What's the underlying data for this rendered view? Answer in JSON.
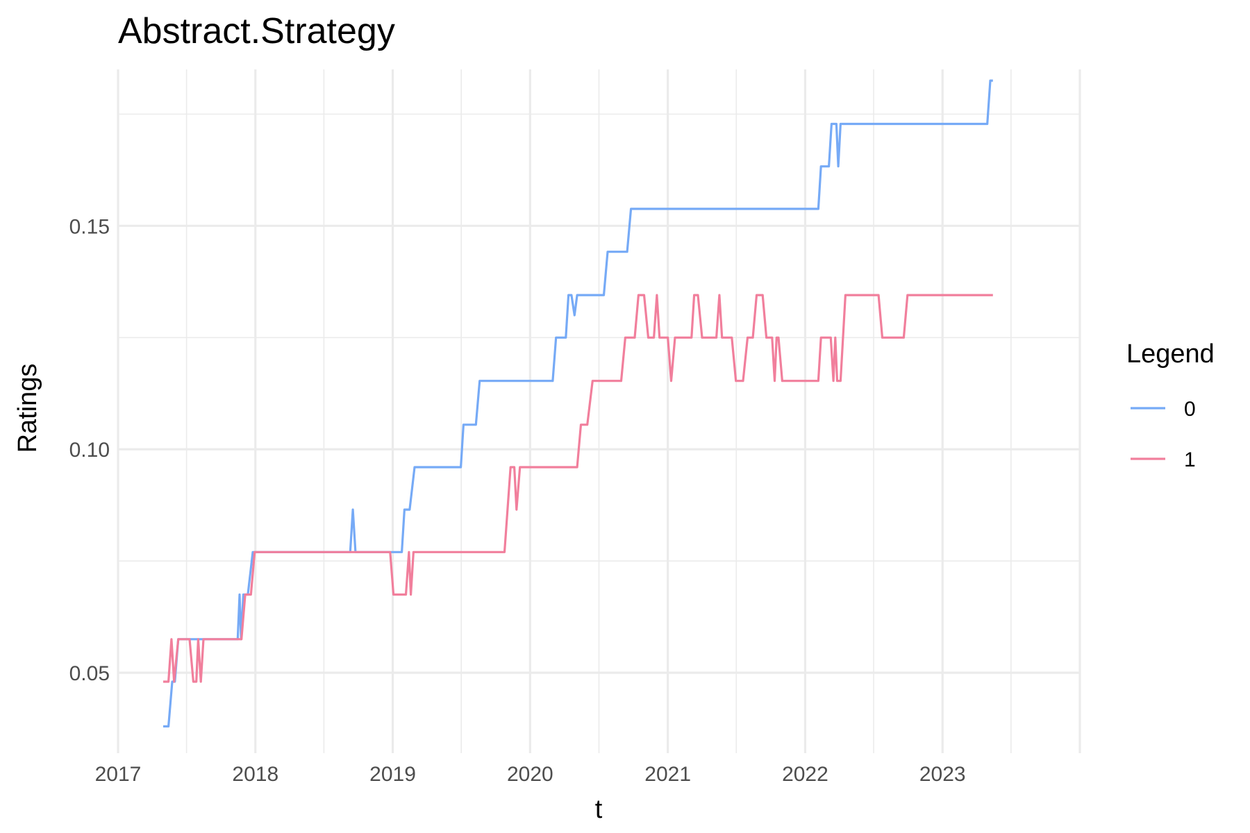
{
  "chart_data": {
    "type": "line",
    "title": "Abstract.Strategy",
    "xlabel": "t",
    "ylabel": "Ratings",
    "xlim": [
      "2017-01-01",
      "2024-01-01"
    ],
    "ylim": [
      0.032,
      0.185
    ],
    "x_ticks": [
      "2017",
      "2018",
      "2019",
      "2020",
      "2021",
      "2022",
      "2023"
    ],
    "y_ticks": [
      "0.05",
      "0.10",
      "0.15"
    ],
    "grid": true,
    "legend": {
      "title": "Legend",
      "placement": "right"
    },
    "series": [
      {
        "name": "0",
        "color": "#76aaf6",
        "points": [
          [
            "2017-05-01",
            0.038
          ],
          [
            "2017-05-15",
            0.038
          ],
          [
            "2017-05-25",
            0.048
          ],
          [
            "2017-06-01",
            0.048
          ],
          [
            "2017-06-10",
            0.0575
          ],
          [
            "2017-11-15",
            0.0575
          ],
          [
            "2017-11-20",
            0.0675
          ],
          [
            "2017-11-24",
            0.0575
          ],
          [
            "2017-11-30",
            0.0675
          ],
          [
            "2017-12-12",
            0.0675
          ],
          [
            "2017-12-25",
            0.077
          ],
          [
            "2018-09-10",
            0.077
          ],
          [
            "2018-09-17",
            0.0865
          ],
          [
            "2018-09-24",
            0.077
          ],
          [
            "2019-01-25",
            0.077
          ],
          [
            "2019-02-01",
            0.0865
          ],
          [
            "2019-02-15",
            0.0865
          ],
          [
            "2019-02-28",
            0.096
          ],
          [
            "2019-07-01",
            0.096
          ],
          [
            "2019-07-08",
            0.1055
          ],
          [
            "2019-08-10",
            0.1055
          ],
          [
            "2019-08-20",
            0.1153
          ],
          [
            "2020-03-01",
            0.1153
          ],
          [
            "2020-03-10",
            0.125
          ],
          [
            "2020-04-05",
            0.125
          ],
          [
            "2020-04-12",
            0.1345
          ],
          [
            "2020-04-20",
            0.1345
          ],
          [
            "2020-04-28",
            0.13
          ],
          [
            "2020-05-05",
            0.1345
          ],
          [
            "2020-07-15",
            0.1345
          ],
          [
            "2020-07-25",
            0.1442
          ],
          [
            "2020-09-15",
            0.1442
          ],
          [
            "2020-09-25",
            0.1538
          ],
          [
            "2022-02-05",
            0.1538
          ],
          [
            "2022-02-12",
            0.1633
          ],
          [
            "2022-03-05",
            0.1633
          ],
          [
            "2022-03-12",
            0.1728
          ],
          [
            "2022-03-25",
            0.1728
          ],
          [
            "2022-03-30",
            0.1633
          ],
          [
            "2022-04-05",
            0.1728
          ],
          [
            "2023-04-30",
            0.1728
          ],
          [
            "2023-05-08",
            0.1825
          ],
          [
            "2023-05-15",
            0.1825
          ]
        ]
      },
      {
        "name": "1",
        "color": "#f17f9c",
        "points": [
          [
            "2017-05-01",
            0.048
          ],
          [
            "2017-05-15",
            0.048
          ],
          [
            "2017-05-23",
            0.0575
          ],
          [
            "2017-05-30",
            0.048
          ],
          [
            "2017-06-10",
            0.0575
          ],
          [
            "2017-07-10",
            0.0575
          ],
          [
            "2017-07-20",
            0.048
          ],
          [
            "2017-07-28",
            0.048
          ],
          [
            "2017-08-02",
            0.0575
          ],
          [
            "2017-08-09",
            0.048
          ],
          [
            "2017-08-16",
            0.0575
          ],
          [
            "2017-11-25",
            0.0575
          ],
          [
            "2017-12-05",
            0.0675
          ],
          [
            "2017-12-20",
            0.0675
          ],
          [
            "2017-12-30",
            0.077
          ],
          [
            "2018-12-25",
            0.077
          ],
          [
            "2019-01-03",
            0.0675
          ],
          [
            "2019-02-05",
            0.0675
          ],
          [
            "2019-02-13",
            0.077
          ],
          [
            "2019-02-18",
            0.0675
          ],
          [
            "2019-02-25",
            0.077
          ],
          [
            "2019-10-25",
            0.077
          ],
          [
            "2019-11-10",
            0.096
          ],
          [
            "2019-11-20",
            0.096
          ],
          [
            "2019-11-26",
            0.0865
          ],
          [
            "2019-12-05",
            0.096
          ],
          [
            "2020-05-05",
            0.096
          ],
          [
            "2020-05-15",
            0.1055
          ],
          [
            "2020-06-01",
            0.1055
          ],
          [
            "2020-06-15",
            0.1153
          ],
          [
            "2020-08-30",
            0.1153
          ],
          [
            "2020-09-10",
            0.125
          ],
          [
            "2020-10-05",
            0.125
          ],
          [
            "2020-10-15",
            0.1345
          ],
          [
            "2020-10-30",
            0.1345
          ],
          [
            "2020-11-10",
            0.125
          ],
          [
            "2020-11-25",
            0.125
          ],
          [
            "2020-12-03",
            0.1345
          ],
          [
            "2020-12-10",
            0.125
          ],
          [
            "2021-01-01",
            0.125
          ],
          [
            "2021-01-10",
            0.1153
          ],
          [
            "2021-01-20",
            0.125
          ],
          [
            "2021-03-05",
            0.125
          ],
          [
            "2021-03-12",
            0.1345
          ],
          [
            "2021-03-22",
            0.1345
          ],
          [
            "2021-04-02",
            0.125
          ],
          [
            "2021-05-10",
            0.125
          ],
          [
            "2021-05-18",
            0.1345
          ],
          [
            "2021-05-25",
            0.125
          ],
          [
            "2021-06-20",
            0.125
          ],
          [
            "2021-07-01",
            0.1153
          ],
          [
            "2021-07-20",
            0.1153
          ],
          [
            "2021-08-01",
            0.125
          ],
          [
            "2021-08-15",
            0.125
          ],
          [
            "2021-08-25",
            0.1345
          ],
          [
            "2021-09-10",
            0.1345
          ],
          [
            "2021-09-20",
            0.125
          ],
          [
            "2021-10-05",
            0.125
          ],
          [
            "2021-10-12",
            0.1153
          ],
          [
            "2021-10-17",
            0.125
          ],
          [
            "2021-10-22",
            0.125
          ],
          [
            "2021-11-01",
            0.1153
          ],
          [
            "2022-02-05",
            0.1153
          ],
          [
            "2022-02-12",
            0.125
          ],
          [
            "2022-03-10",
            0.125
          ],
          [
            "2022-03-17",
            0.1153
          ],
          [
            "2022-03-22",
            0.125
          ],
          [
            "2022-03-27",
            0.1153
          ],
          [
            "2022-04-05",
            0.1153
          ],
          [
            "2022-04-18",
            0.1345
          ],
          [
            "2022-07-15",
            0.1345
          ],
          [
            "2022-07-25",
            0.125
          ],
          [
            "2022-09-20",
            0.125
          ],
          [
            "2022-09-30",
            0.1345
          ],
          [
            "2023-05-15",
            0.1345
          ]
        ]
      }
    ]
  }
}
